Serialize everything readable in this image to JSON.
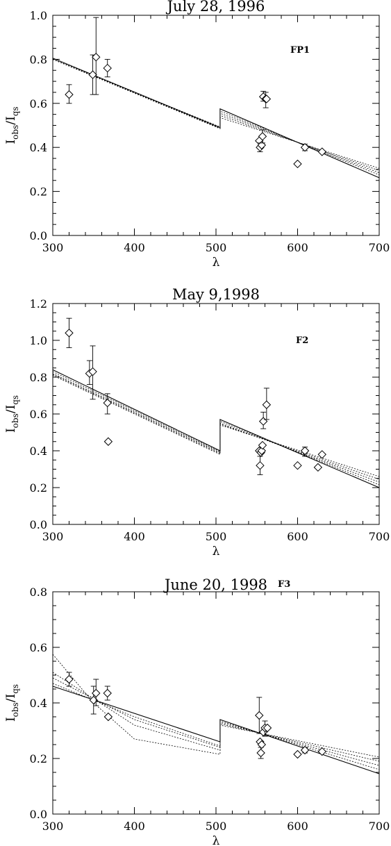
{
  "chart_data": [
    {
      "type": "scatter",
      "title": "July 28, 1996",
      "label": "FP1",
      "xlabel": "λ",
      "ylabel": {
        "main": "I",
        "sub1": "obs",
        "slash": "/I",
        "sub2": "qs"
      },
      "xlim": [
        300,
        700
      ],
      "ylim": [
        0.0,
        1.0
      ],
      "xticks": [
        300,
        400,
        500,
        600,
        700
      ],
      "yticks": [
        "0.0",
        "0.2",
        "0.4",
        "0.6",
        "0.8",
        "1.0"
      ],
      "points": [
        {
          "x": 320,
          "y": 0.64,
          "lo": 0.6,
          "hi": 0.685
        },
        {
          "x": 349,
          "y": 0.73,
          "lo": 0.64,
          "hi": 0.82
        },
        {
          "x": 353,
          "y": 0.81,
          "lo": 0.64,
          "hi": 0.99
        },
        {
          "x": 367,
          "y": 0.76,
          "lo": 0.72,
          "hi": 0.8
        },
        {
          "x": 553,
          "y": 0.43
        },
        {
          "x": 554,
          "y": 0.4,
          "lo": 0.38,
          "hi": 0.42
        },
        {
          "x": 556,
          "y": 0.41
        },
        {
          "x": 557,
          "y": 0.45,
          "lo": 0.42,
          "hi": 0.48
        },
        {
          "x": 558,
          "y": 0.63,
          "lo": 0.61,
          "hi": 0.655
        },
        {
          "x": 561,
          "y": 0.62,
          "lo": 0.58,
          "hi": 0.65
        },
        {
          "x": 562,
          "y": 0.62
        },
        {
          "x": 600,
          "y": 0.325
        },
        {
          "x": 609,
          "y": 0.4,
          "lo": 0.385,
          "hi": 0.415
        },
        {
          "x": 630,
          "y": 0.38
        }
      ],
      "model_curves": [
        {
          "style": "solid",
          "x": [
            300,
            505,
            505,
            700
          ],
          "y": [
            0.805,
            0.49,
            0.575,
            0.262
          ]
        },
        {
          "style": "dotted",
          "x": [
            300,
            505,
            505,
            700
          ],
          "y": [
            0.8,
            0.485,
            0.565,
            0.275
          ]
        },
        {
          "style": "dotted",
          "x": [
            300,
            505,
            505,
            700
          ],
          "y": [
            0.8,
            0.487,
            0.555,
            0.285
          ]
        },
        {
          "style": "dotted",
          "x": [
            300,
            505,
            505,
            700
          ],
          "y": [
            0.8,
            0.49,
            0.545,
            0.295
          ]
        },
        {
          "style": "dotted",
          "x": [
            300,
            505,
            505,
            700
          ],
          "y": [
            0.8,
            0.493,
            0.535,
            0.305
          ]
        }
      ]
    },
    {
      "type": "scatter",
      "title": "May 9,1998",
      "label": "F2",
      "xlabel": "λ",
      "ylabel": {
        "main": "I",
        "sub1": "obs",
        "slash": "/I",
        "sub2": "qs"
      },
      "xlim": [
        300,
        700
      ],
      "ylim": [
        0.0,
        1.2
      ],
      "xticks": [
        300,
        400,
        500,
        600,
        700
      ],
      "yticks": [
        "0.0",
        "0.2",
        "0.4",
        "0.6",
        "0.8",
        "1.0",
        "1.2"
      ],
      "points": [
        {
          "x": 320,
          "y": 1.04,
          "lo": 0.96,
          "hi": 1.12
        },
        {
          "x": 345,
          "y": 0.82,
          "lo": 0.76,
          "hi": 0.89
        },
        {
          "x": 349,
          "y": 0.83,
          "lo": 0.68,
          "hi": 0.97
        },
        {
          "x": 367,
          "y": 0.66,
          "lo": 0.6,
          "hi": 0.71
        },
        {
          "x": 368,
          "y": 0.45
        },
        {
          "x": 553,
          "y": 0.4
        },
        {
          "x": 554,
          "y": 0.32,
          "lo": 0.27,
          "hi": 0.37
        },
        {
          "x": 555,
          "y": 0.39
        },
        {
          "x": 556,
          "y": 0.4
        },
        {
          "x": 557,
          "y": 0.43
        },
        {
          "x": 558,
          "y": 0.56,
          "lo": 0.52,
          "hi": 0.61
        },
        {
          "x": 562,
          "y": 0.65,
          "lo": 0.57,
          "hi": 0.74
        },
        {
          "x": 600,
          "y": 0.32
        },
        {
          "x": 609,
          "y": 0.4,
          "lo": 0.37,
          "hi": 0.42
        },
        {
          "x": 625,
          "y": 0.31
        },
        {
          "x": 630,
          "y": 0.38
        }
      ],
      "model_curves": [
        {
          "style": "solid",
          "x": [
            300,
            505,
            505,
            700
          ],
          "y": [
            0.84,
            0.4,
            0.57,
            0.2
          ]
        },
        {
          "style": "dotted",
          "x": [
            300,
            505,
            505,
            700
          ],
          "y": [
            0.83,
            0.395,
            0.56,
            0.215
          ]
        },
        {
          "style": "dotted",
          "x": [
            300,
            505,
            505,
            700
          ],
          "y": [
            0.82,
            0.39,
            0.55,
            0.23
          ]
        },
        {
          "style": "dotted",
          "x": [
            300,
            505,
            505,
            700
          ],
          "y": [
            0.815,
            0.385,
            0.545,
            0.245
          ]
        },
        {
          "style": "dotted",
          "x": [
            300,
            505,
            505,
            700
          ],
          "y": [
            0.81,
            0.38,
            0.54,
            0.26
          ]
        }
      ]
    },
    {
      "type": "scatter",
      "title": "June 20, 1998",
      "label": "F3",
      "xlabel": "λ",
      "ylabel": {
        "main": "I",
        "sub1": "obs",
        "slash": "/I",
        "sub2": "qs"
      },
      "xlim": [
        300,
        700
      ],
      "ylim": [
        0.0,
        0.8
      ],
      "xticks": [
        300,
        400,
        500,
        600,
        700
      ],
      "yticks": [
        "0.0",
        "0.2",
        "0.4",
        "0.6",
        "0.8"
      ],
      "points": [
        {
          "x": 320,
          "y": 0.485,
          "lo": 0.46,
          "hi": 0.51
        },
        {
          "x": 350,
          "y": 0.41,
          "lo": 0.36,
          "hi": 0.46
        },
        {
          "x": 353,
          "y": 0.435,
          "lo": 0.39,
          "hi": 0.485
        },
        {
          "x": 367,
          "y": 0.435,
          "lo": 0.41,
          "hi": 0.46
        },
        {
          "x": 368,
          "y": 0.35
        },
        {
          "x": 553,
          "y": 0.355,
          "lo": 0.29,
          "hi": 0.42
        },
        {
          "x": 554,
          "y": 0.26
        },
        {
          "x": 555,
          "y": 0.22,
          "lo": 0.2,
          "hi": 0.24
        },
        {
          "x": 556,
          "y": 0.25
        },
        {
          "x": 558,
          "y": 0.295
        },
        {
          "x": 560,
          "y": 0.31,
          "lo": 0.28,
          "hi": 0.335
        },
        {
          "x": 563,
          "y": 0.31
        },
        {
          "x": 600,
          "y": 0.215
        },
        {
          "x": 609,
          "y": 0.23,
          "lo": 0.22,
          "hi": 0.24
        },
        {
          "x": 630,
          "y": 0.225
        }
      ],
      "model_curves": [
        {
          "style": "solid",
          "x": [
            300,
            505,
            505,
            700
          ],
          "y": [
            0.46,
            0.26,
            0.34,
            0.145
          ]
        },
        {
          "style": "dotted",
          "x": [
            300,
            400,
            505,
            505,
            700
          ],
          "y": [
            0.47,
            0.35,
            0.245,
            0.335,
            0.16
          ]
        },
        {
          "style": "dotted",
          "x": [
            300,
            400,
            505,
            505,
            700
          ],
          "y": [
            0.49,
            0.34,
            0.24,
            0.33,
            0.175
          ]
        },
        {
          "style": "dotted",
          "x": [
            300,
            400,
            505,
            505,
            700
          ],
          "y": [
            0.51,
            0.32,
            0.23,
            0.325,
            0.19
          ]
        },
        {
          "style": "dotted",
          "x": [
            300,
            350,
            400,
            505,
            505,
            700
          ],
          "y": [
            0.575,
            0.4,
            0.27,
            0.215,
            0.32,
            0.205
          ]
        }
      ]
    }
  ]
}
